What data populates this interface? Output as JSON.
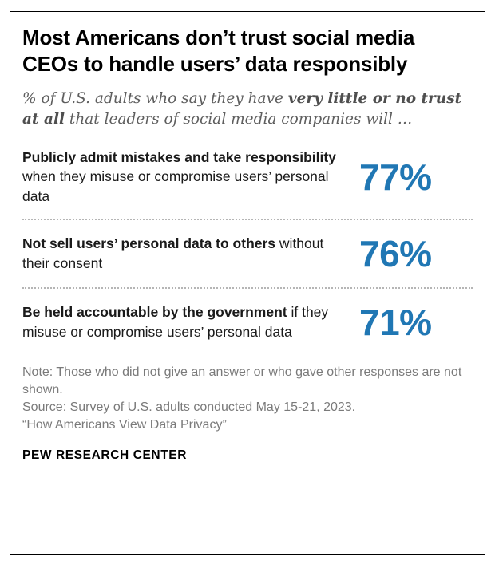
{
  "chart_data": {
    "type": "bar",
    "title": "Most Americans don’t trust social media CEOs to handle users’ data responsibly",
    "subtitle": "% of U.S. adults who say they have very little or no trust at all that leaders of social media companies will …",
    "categories": [
      "Publicly admit mistakes and take responsibility when they misuse or compromise users’ personal data",
      "Not sell users’ personal data to others without their consent",
      "Be held accountable by the government if they misuse or compromise users’ personal data"
    ],
    "values": [
      77,
      76,
      71
    ],
    "unit": "%",
    "xlabel": "",
    "ylabel": "",
    "ylim": [
      0,
      100
    ],
    "legend": "none",
    "grid": false
  },
  "header": {
    "title": "Most Americans don’t trust social media CEOs to handle users’ data responsibly",
    "subtitle_pre": "% of U.S. adults who say they have ",
    "subtitle_bold": "very little or no trust at all",
    "subtitle_post": " that leaders of social media companies will …"
  },
  "rows": [
    {
      "bold": "Publicly admit mistakes and take responsibility",
      "rest": " when they misuse or compromise users’ personal data",
      "value": "77%"
    },
    {
      "bold": "Not sell users’ personal data to others",
      "rest": " without their consent",
      "value": "76%"
    },
    {
      "bold": "Be held accountable by the government",
      "rest": " if they misuse or compromise users’ personal data",
      "value": "71%"
    }
  ],
  "footer": {
    "note_line": "Note: Those who did not give an answer or who gave other responses are not shown.",
    "source_line": "Source: Survey of U.S. adults conducted May 15-21, 2023.",
    "report_line": "“How Americans View Data Privacy”",
    "brand": "PEW RESEARCH CENTER"
  },
  "colors": {
    "accent_blue": "#2077b4",
    "note_gray": "#7a7a7a"
  }
}
